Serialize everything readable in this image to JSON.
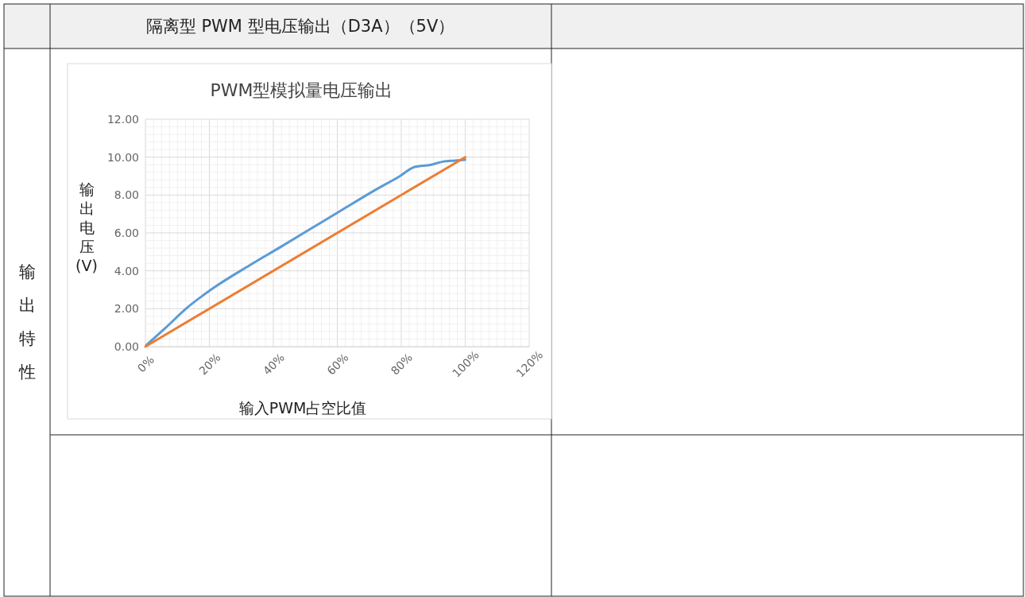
{
  "chart_data": {
    "type": "line",
    "title": "PWM型模拟量电压输出",
    "xlabel": "输入PWM占空比值",
    "ylabel": "输出电压(V)",
    "annotations": [
      "隔离型 PWM 型电压输出（D3A）（5V）",
      "输出特性"
    ],
    "xlim": [
      0,
      120
    ],
    "xticks": [
      {
        "value": 0,
        "label": "0%"
      },
      {
        "value": 20,
        "label": "20%"
      },
      {
        "value": 40,
        "label": "40%"
      },
      {
        "value": 60,
        "label": "60%"
      },
      {
        "value": 80,
        "label": "80%"
      },
      {
        "value": 100,
        "label": "100%"
      },
      {
        "value": 120,
        "label": "120%"
      }
    ],
    "ylim": [
      0,
      12
    ],
    "yticks": [
      {
        "value": 0,
        "label": "0.00"
      },
      {
        "value": 2,
        "label": "2.00"
      },
      {
        "value": 4,
        "label": "4.00"
      },
      {
        "value": 6,
        "label": "6.00"
      },
      {
        "value": 8,
        "label": "8.00"
      },
      {
        "value": 10,
        "label": "10.00"
      },
      {
        "value": 12,
        "label": "12.00"
      }
    ],
    "grid": true,
    "line_style": "solid",
    "marker": "none",
    "series": [
      {
        "color": "#5b9bd5",
        "x": [
          0.3,
          6.3,
          13.1,
          20.9,
          32.6,
          42.4,
          52.1,
          61.8,
          71.6,
          79.4,
          84.2,
          89.1,
          93,
          96.9,
          100
        ],
        "values": [
          0.08,
          0.99,
          2.06,
          3.05,
          4.29,
          5.27,
          6.26,
          7.25,
          8.24,
          8.98,
          9.48,
          9.59,
          9.76,
          9.82,
          9.86
        ]
      },
      {
        "color": "#ed7d31",
        "x": [
          0,
          100
        ],
        "values": [
          0,
          10
        ]
      }
    ]
  }
}
